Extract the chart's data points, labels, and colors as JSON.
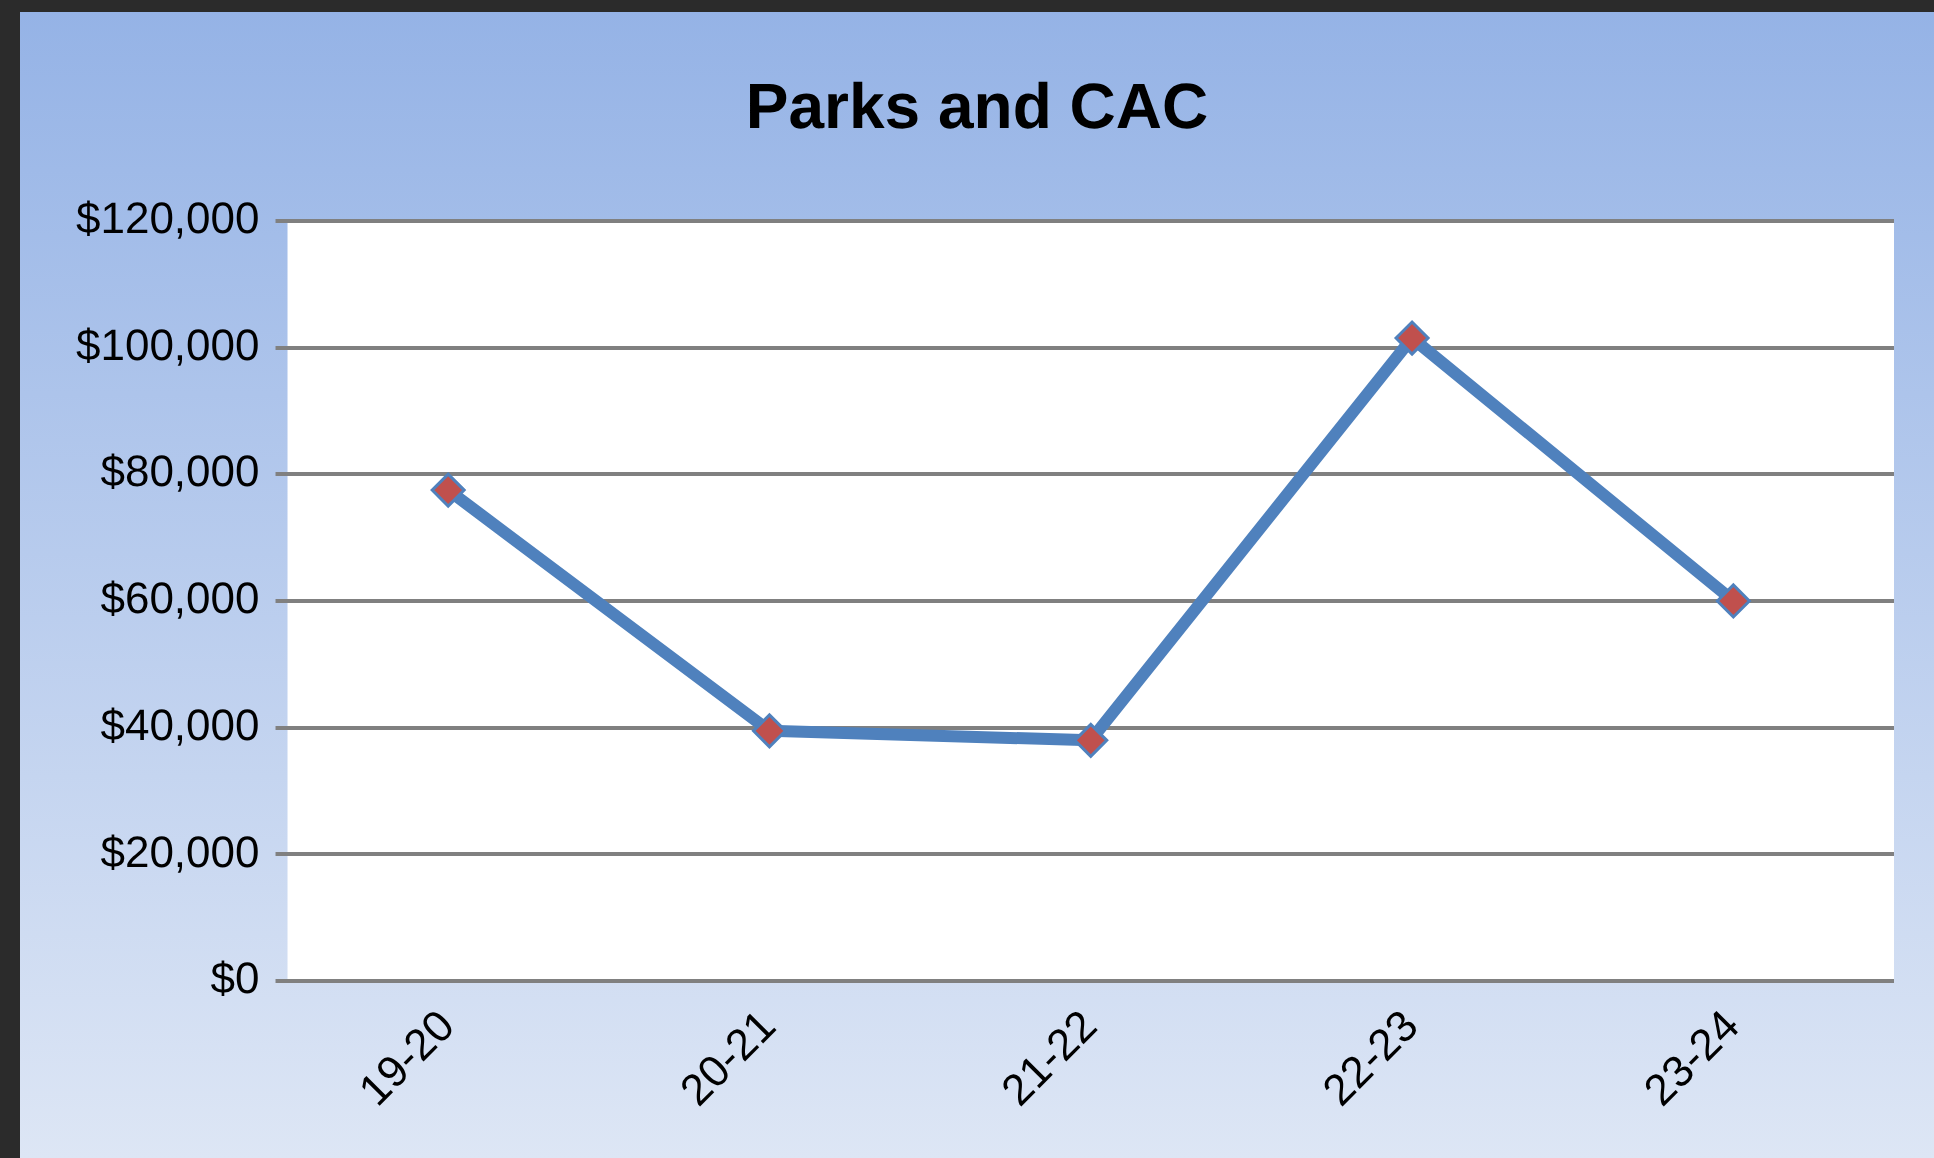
{
  "chart_data": {
    "type": "line",
    "title": "Parks and CAC",
    "categories": [
      "19-20",
      "20-21",
      "21-22",
      "22-23",
      "23-24"
    ],
    "series": [
      {
        "color": "#4f81bd",
        "colors": [
          "#c0504d",
          "#c0504d",
          "#c0504d",
          "#c0504d",
          "#c0504d"
        ],
        "values": [
          77500,
          39500,
          38000,
          101500,
          60000
        ]
      }
    ],
    "ylim": [
      0,
      120000
    ],
    "yticks": [
      {
        "value": 0,
        "label": "$0"
      },
      {
        "value": 20000,
        "label": "$20,000"
      },
      {
        "value": 40000,
        "label": "$40,000"
      },
      {
        "value": 60000,
        "label": "$60,000"
      },
      {
        "value": 80000,
        "label": "$80,000"
      },
      {
        "value": 100000,
        "label": "$100,000"
      },
      {
        "value": 120000,
        "label": "$120,000"
      }
    ],
    "grid": "y",
    "legend": false,
    "marker": "diamond",
    "line_style": "solid"
  }
}
